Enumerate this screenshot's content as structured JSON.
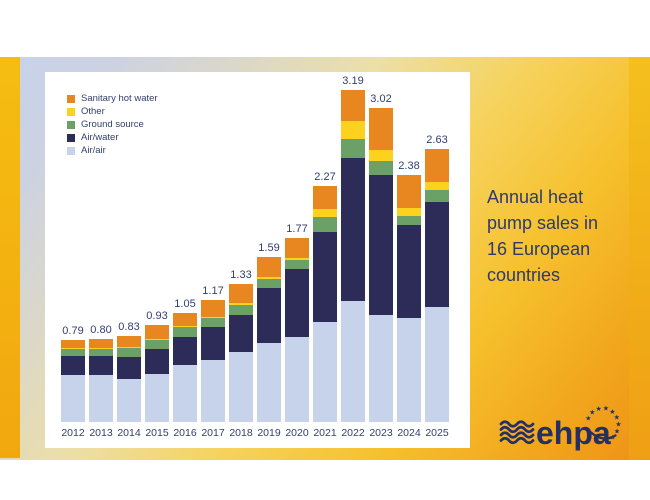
{
  "page": {
    "side_title_lines": [
      "Annual heat",
      "pump sales in",
      "16 European",
      "countries"
    ],
    "side_title_text": "Annual heat pump sales in 16 European countries"
  },
  "logo": {
    "text": "ehpa",
    "color": "#252f63"
  },
  "colors": {
    "panel": "#ffffff",
    "label_text": "#33406e",
    "title_text": "#2c3a6e",
    "background_blue": "#c7d3ec",
    "background_gold": "#f1a51c"
  },
  "chart_data": {
    "type": "bar",
    "stacked": true,
    "title": "",
    "xlabel": "",
    "ylabel": "",
    "ylim": [
      0,
      3.4
    ],
    "grid": false,
    "legend_position": "top-left",
    "categories": [
      "2012",
      "2013",
      "2014",
      "2015",
      "2016",
      "2017",
      "2018",
      "2019",
      "2020",
      "2021",
      "2022",
      "2023",
      "2024",
      "2025"
    ],
    "series": [
      {
        "name": "Air/air",
        "color": "#c6d3ea",
        "values": [
          0.45,
          0.45,
          0.41,
          0.46,
          0.55,
          0.6,
          0.67,
          0.76,
          0.82,
          0.96,
          1.16,
          1.03,
          1.0,
          1.11
        ]
      },
      {
        "name": "Air/water",
        "color": "#2d2c58",
        "values": [
          0.18,
          0.18,
          0.22,
          0.24,
          0.27,
          0.31,
          0.36,
          0.53,
          0.65,
          0.87,
          1.38,
          1.35,
          0.89,
          1.01
        ]
      },
      {
        "name": "Ground source",
        "color": "#6ba167",
        "values": [
          0.07,
          0.07,
          0.08,
          0.09,
          0.09,
          0.09,
          0.1,
          0.09,
          0.09,
          0.14,
          0.18,
          0.13,
          0.09,
          0.11
        ]
      },
      {
        "name": "Other",
        "color": "#fdd21f",
        "values": [
          0.01,
          0.01,
          0.01,
          0.01,
          0.01,
          0.01,
          0.01,
          0.01,
          0.02,
          0.08,
          0.17,
          0.11,
          0.08,
          0.08
        ]
      },
      {
        "name": "Sanitary hot water",
        "color": "#e8861f",
        "values": [
          0.08,
          0.09,
          0.11,
          0.13,
          0.13,
          0.16,
          0.19,
          0.2,
          0.19,
          0.22,
          0.3,
          0.4,
          0.32,
          0.32
        ]
      }
    ],
    "totals": [
      "0.79",
      "0.80",
      "0.83",
      "0.93",
      "1.05",
      "1.17",
      "1.33",
      "1.59",
      "1.77",
      "2.27",
      "3.19",
      "3.02",
      "2.38",
      "2.63"
    ],
    "legend_order": [
      "Sanitary hot water",
      "Other",
      "Ground source",
      "Air/water",
      "Air/air"
    ]
  }
}
